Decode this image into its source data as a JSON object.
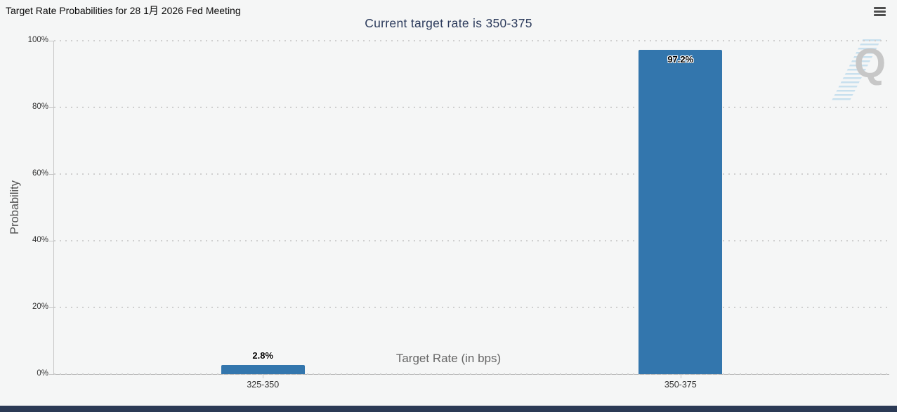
{
  "header": {
    "title": "Target Rate Probabilities for 28 1月 2026 Fed Meeting"
  },
  "menu": {
    "icon": "hamburger-icon"
  },
  "chart": {
    "subtitle": "Current target rate is 350-375",
    "watermark_letter": "Q"
  },
  "chart_data": {
    "type": "bar",
    "title": "Target Rate Probabilities for 28 1月 2026 Fed Meeting",
    "subtitle": "Current target rate is 350-375",
    "categories": [
      "325-350",
      "350-375"
    ],
    "values": [
      2.8,
      97.2
    ],
    "data_labels": [
      "2.8%",
      "97.2%"
    ],
    "xlabel": "Target Rate (in bps)",
    "ylabel": "Probability",
    "ylim": [
      0,
      100
    ],
    "ytick_values": [
      0,
      20,
      40,
      60,
      80,
      100
    ],
    "ytick_labels": [
      "0%",
      "20%",
      "40%",
      "60%",
      "80%",
      "100%"
    ],
    "grid": "horizontal-dotted",
    "legend": "none",
    "bar_color": "#3376ad"
  },
  "colors": {
    "background": "#f5f6f6",
    "bar": "#3376ad",
    "subtitle_text": "#2c3b5c",
    "axis_text": "#333333",
    "axis_title_text": "#666666",
    "gridline": "#cfcfcf",
    "footer_bar": "#2b3a55",
    "watermark_gray": "#c7c7c7",
    "watermark_blue": "#b9d8ec"
  }
}
